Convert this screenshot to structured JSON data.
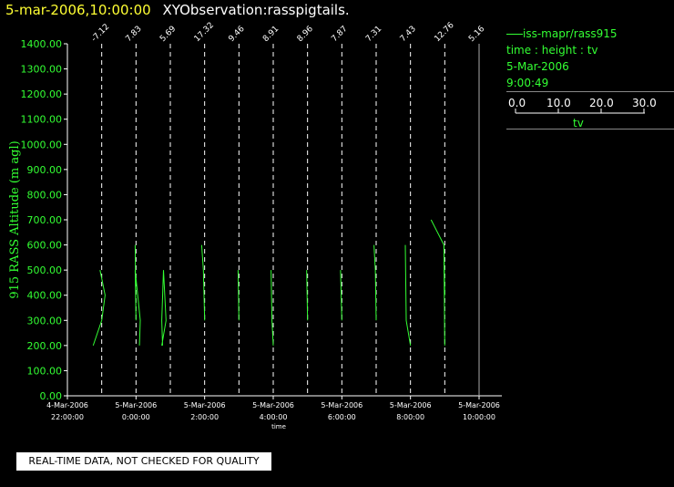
{
  "header": {
    "date_time": "5-mar-2006,10:00:00",
    "observation": "XYObservation:rasspigtails."
  },
  "legend": {
    "series": "iss-mapr/rass915",
    "mode": "time : height : tv",
    "date": "5-Mar-2006",
    "time": "9:00:49",
    "scale_ticks": [
      "0.0",
      "10.0",
      "20.0",
      "30.0"
    ],
    "scale_label": "tv"
  },
  "notice": "REAL-TIME DATA, NOT CHECKED FOR QUALITY",
  "colors": {
    "series": "#33ff33",
    "axis": "#ffffff",
    "title_date": "#ffff33"
  },
  "chart_data": {
    "type": "line",
    "title": "XYObservation:rasspigtails.",
    "ylabel": "915 RASS Altitude (m agl)",
    "xlabel": "time",
    "ylim": [
      0,
      1400
    ],
    "y_ticks": [
      "0.00",
      "100.00",
      "200.00",
      "300.00",
      "400.00",
      "500.00",
      "600.00",
      "700.00",
      "800.00",
      "900.00",
      "1000.00",
      "1100.00",
      "1200.00",
      "1300.00",
      "1400.00"
    ],
    "x_ticks": [
      {
        "t": 0,
        "line1": "4-Mar-2006",
        "line2": "22:00:00"
      },
      {
        "t": 2,
        "line1": "5-Mar-2006",
        "line2": "0:00:00"
      },
      {
        "t": 4,
        "line1": "5-Mar-2006",
        "line2": "2:00:00"
      },
      {
        "t": 6,
        "line1": "5-Mar-2006",
        "line2": "4:00:00"
      },
      {
        "t": 8,
        "line1": "5-Mar-2006",
        "line2": "6:00:00"
      },
      {
        "t": 10,
        "line1": "5-Mar-2006",
        "line2": "8:00:00"
      },
      {
        "t": 12,
        "line1": "5-Mar-2006",
        "line2": "10:00:00"
      }
    ],
    "xlim_hours_from_start": [
      0,
      12
    ],
    "profiles": [
      {
        "t": 1,
        "label": "-7.12",
        "points": [
          [
            -1.0,
            200
          ],
          [
            0.0,
            300
          ],
          [
            0.4,
            400
          ],
          [
            -0.2,
            500
          ]
        ]
      },
      {
        "t": 2,
        "label": "7.83",
        "points": [
          [
            -0.1,
            600
          ],
          [
            0.0,
            300
          ],
          [
            -0.1,
            500
          ],
          [
            0.5,
            300
          ],
          [
            0.4,
            200
          ]
        ]
      },
      {
        "t": 3,
        "label": "5.69",
        "points": [
          [
            -1.0,
            200
          ],
          [
            -0.5,
            300
          ],
          [
            -0.8,
            500
          ],
          [
            -1.0,
            300
          ],
          [
            -0.9,
            200
          ]
        ]
      },
      {
        "t": 4,
        "label": "17.32",
        "points": [
          [
            -0.35,
            600
          ],
          [
            -0.15,
            500
          ],
          [
            0.0,
            300
          ]
        ]
      },
      {
        "t": 5,
        "label": "9.46",
        "points": [
          [
            -0.1,
            500
          ],
          [
            0.0,
            300
          ]
        ]
      },
      {
        "t": 6,
        "label": "8.91",
        "points": [
          [
            -0.25,
            500
          ],
          [
            -0.15,
            300
          ],
          [
            0.0,
            200
          ]
        ]
      },
      {
        "t": 7,
        "label": "8.96",
        "points": [
          [
            -0.1,
            500
          ],
          [
            0.0,
            300
          ]
        ]
      },
      {
        "t": 8,
        "label": "7.87",
        "points": [
          [
            -0.15,
            500
          ],
          [
            0.0,
            300
          ]
        ]
      },
      {
        "t": 9,
        "label": "7.31",
        "points": [
          [
            -0.25,
            600
          ],
          [
            -0.1,
            500
          ],
          [
            0.0,
            300
          ]
        ]
      },
      {
        "t": 10,
        "label": "7.43",
        "points": [
          [
            -0.6,
            600
          ],
          [
            -0.5,
            300
          ],
          [
            0.0,
            200
          ]
        ]
      },
      {
        "t": 11,
        "label": "12.76",
        "points": [
          [
            -1.6,
            700
          ],
          [
            -0.1,
            600
          ],
          [
            0.0,
            400
          ]
        ]
      },
      {
        "t": 11,
        "label": "",
        "points": [
          [
            -0.1,
            600
          ],
          [
            0.0,
            200
          ]
        ]
      },
      {
        "t": 12,
        "label": "5.16",
        "points": []
      }
    ]
  }
}
